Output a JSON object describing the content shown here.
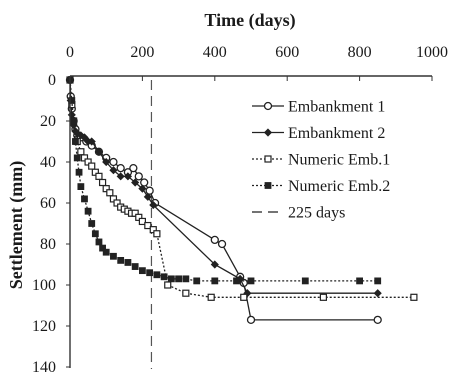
{
  "chart_data": {
    "type": "line",
    "xlabel": "Time (days)",
    "ylabel": "Settlement (mm)",
    "xlim": [
      0,
      1000
    ],
    "ylim": [
      0,
      140
    ],
    "y_inverted": true,
    "x_axis_position": "top",
    "x_ticks": [
      "0",
      "200",
      "400",
      "600",
      "800",
      "1000"
    ],
    "y_ticks": [
      "0",
      "20",
      "40",
      "60",
      "80",
      "100",
      "120",
      "140"
    ],
    "grid": false,
    "legend_position": "right",
    "series": [
      {
        "name": "Embankment 1",
        "marker": "open-circle",
        "dash": "solid",
        "x": [
          0,
          2,
          5,
          10,
          15,
          20,
          30,
          45,
          60,
          80,
          100,
          120,
          140,
          160,
          175,
          190,
          205,
          220,
          235,
          400,
          420,
          470,
          480,
          500,
          850
        ],
        "y": [
          0,
          8,
          14,
          20,
          24,
          27,
          28,
          30,
          32,
          35,
          38,
          40,
          43,
          45,
          43,
          47,
          50,
          54,
          60,
          78,
          80,
          96,
          99,
          117,
          117
        ]
      },
      {
        "name": "Embankment 2",
        "marker": "filled-diamond",
        "dash": "solid",
        "x": [
          0,
          2,
          5,
          10,
          15,
          20,
          30,
          40,
          50,
          60,
          80,
          100,
          120,
          140,
          160,
          180,
          200,
          215,
          230,
          400,
          470,
          490,
          850
        ],
        "y": [
          0,
          10,
          17,
          22,
          25,
          26,
          27,
          28,
          30,
          30,
          35,
          40,
          44,
          47,
          47,
          50,
          53,
          57,
          61,
          90,
          97,
          104,
          104
        ]
      },
      {
        "name": "Numeric Emb.1",
        "marker": "open-square",
        "dash": "dotted",
        "x": [
          0,
          5,
          10,
          20,
          30,
          40,
          50,
          60,
          70,
          80,
          90,
          100,
          110,
          120,
          130,
          140,
          150,
          160,
          170,
          180,
          190,
          200,
          215,
          230,
          240,
          270,
          320,
          390,
          480,
          700,
          950
        ],
        "y": [
          0,
          12,
          20,
          30,
          35,
          38,
          40,
          42,
          45,
          47,
          50,
          53,
          55,
          58,
          60,
          62,
          63,
          64,
          65,
          65,
          67,
          69,
          71,
          73,
          75,
          100,
          104,
          106,
          106,
          106,
          106
        ]
      },
      {
        "name": "Numeric Emb.2",
        "marker": "filled-square",
        "dash": "dotted",
        "x": [
          0,
          5,
          10,
          15,
          20,
          25,
          30,
          40,
          50,
          60,
          70,
          80,
          90,
          100,
          120,
          140,
          160,
          180,
          200,
          220,
          240,
          260,
          280,
          300,
          320,
          350,
          400,
          460,
          500,
          650,
          800,
          850
        ],
        "y": [
          0,
          10,
          20,
          30,
          38,
          45,
          52,
          58,
          64,
          70,
          75,
          79,
          82,
          84,
          86,
          88,
          89,
          91,
          93,
          94,
          95,
          96,
          97,
          97,
          97,
          98,
          98,
          98,
          98,
          98,
          98,
          98
        ]
      }
    ],
    "reference_lines": [
      {
        "name": "225 days",
        "x": 225,
        "dash": "long-dash"
      }
    ]
  }
}
